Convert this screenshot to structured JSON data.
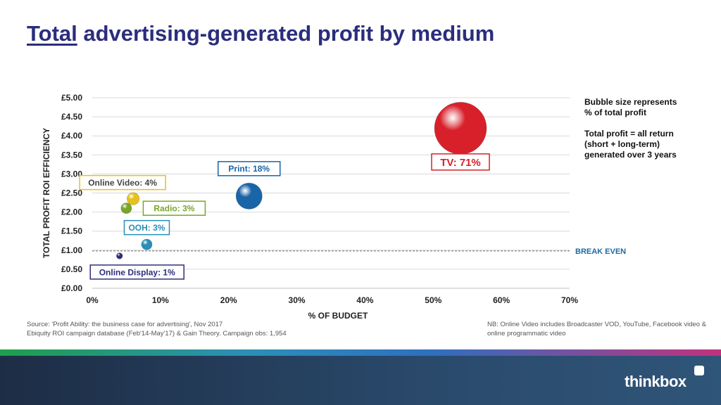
{
  "title": {
    "underlined": "Total",
    "rest": "advertising-generated profit by medium"
  },
  "colors": {
    "title": "#2b2d7c",
    "tv": "#d8202a",
    "print": "#1a64a8",
    "online_video": "#e6c21a",
    "radio": "#7aa52a",
    "ooh": "#2a8fb8",
    "online_display": "#2f2f7a",
    "break_even": "#1a6aa0"
  },
  "notes": [
    "Bubble size represents\n% of total profit",
    "Total profit = all return\n(short + long-term)\ngenerated over 3 years"
  ],
  "source": [
    "Source: 'Profit Ability: the business case for advertising', Nov 2017",
    "Ebiquity ROI campaign database (Feb'14-May'17)  & Gain Theory.  Campaign obs: 1,954"
  ],
  "nb_note": "NB: Online Video includes Broadcaster VOD, YouTube, Facebook video & online programmatic video",
  "brand": {
    "name": "thinkbox",
    "logo_icon": "thinkbox-square-icon"
  },
  "chart_data": {
    "type": "scatter",
    "variant": "bubble",
    "xlabel": "% OF BUDGET",
    "ylabel": "TOTAL PROFIT ROI EFFICIENCY",
    "xlim": [
      0,
      70
    ],
    "ylim": [
      0,
      5
    ],
    "x_ticks": [
      0,
      10,
      20,
      30,
      40,
      50,
      60,
      70
    ],
    "x_tick_labels": [
      "0%",
      "10%",
      "20%",
      "30%",
      "40%",
      "50%",
      "60%",
      "70%"
    ],
    "y_ticks": [
      0,
      0.5,
      1,
      1.5,
      2,
      2.5,
      3,
      3.5,
      4,
      4.5,
      5
    ],
    "y_tick_labels": [
      "£0.00",
      "£0.50",
      "£1.00",
      "£1.50",
      "£2.00",
      "£2.50",
      "£3.00",
      "£3.50",
      "£4.00",
      "£4.50",
      "£5.00"
    ],
    "grid": true,
    "reference_line": {
      "y": 0.98,
      "label": "BREAK EVEN"
    },
    "points": [
      {
        "name": "TV",
        "label": "TV: 71%",
        "x": 54,
        "y": 4.2,
        "size": 71,
        "color": "#d8202a"
      },
      {
        "name": "Print",
        "label": "Print: 18%",
        "x": 23,
        "y": 2.42,
        "size": 18,
        "color": "#1a64a8"
      },
      {
        "name": "Online Video",
        "label": "Online Video: 4%",
        "x": 6,
        "y": 2.35,
        "size": 4,
        "color": "#e6c21a"
      },
      {
        "name": "Radio",
        "label": "Radio: 3%",
        "x": 5,
        "y": 2.1,
        "size": 3,
        "color": "#7aa52a"
      },
      {
        "name": "OOH",
        "label": "OOH: 3%",
        "x": 8,
        "y": 1.15,
        "size": 3,
        "color": "#2a8fb8"
      },
      {
        "name": "Online Display",
        "label": "Online Display: 1%",
        "x": 4,
        "y": 0.85,
        "size": 1,
        "color": "#2f2f7a"
      }
    ]
  }
}
